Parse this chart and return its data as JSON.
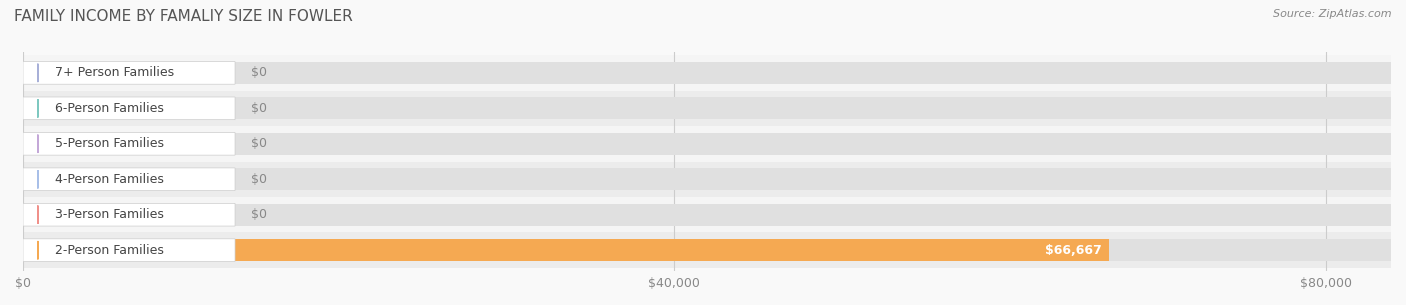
{
  "title": "FAMILY INCOME BY FAMALIY SIZE IN FOWLER",
  "source": "Source: ZipAtlas.com",
  "categories": [
    "2-Person Families",
    "3-Person Families",
    "4-Person Families",
    "5-Person Families",
    "6-Person Families",
    "7+ Person Families"
  ],
  "values": [
    66667,
    0,
    0,
    0,
    0,
    0
  ],
  "bar_colors": [
    "#f5a952",
    "#f0908a",
    "#a8bfe8",
    "#c4a8d8",
    "#7ec8c0",
    "#a8b0d8"
  ],
  "bar_label_value": [
    "$66,667",
    "$0",
    "$0",
    "$0",
    "$0",
    "$0"
  ],
  "xlim": [
    0,
    84000
  ],
  "xticks": [
    0,
    40000,
    80000
  ],
  "xticklabels": [
    "$0",
    "$40,000",
    "$80,000"
  ],
  "title_fontsize": 11,
  "source_fontsize": 8,
  "tick_fontsize": 9,
  "label_fontsize": 9,
  "value_fontsize": 9,
  "fig_bg": "#f9f9f9",
  "row_bg_colors": [
    "#ececec",
    "#f5f5f5"
  ]
}
